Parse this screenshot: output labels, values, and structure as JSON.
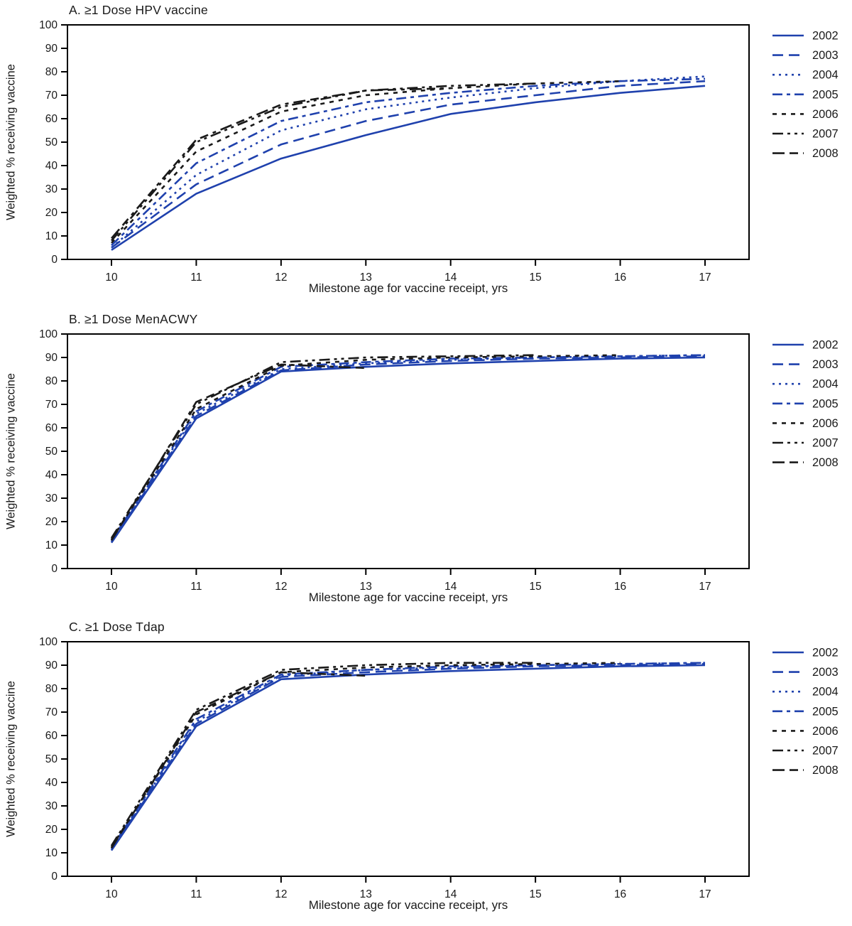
{
  "figure": {
    "background": "#ffffff",
    "text_color": "#1a1a1a",
    "axis_color": "#000000",
    "blue": "#1f41ad",
    "black": "#1a1a1a"
  },
  "chart_data": [
    {
      "type": "line",
      "panel": "A",
      "title": "A. ≥1 Dose HPV vaccine",
      "xlabel": "Milestone age for vaccine receipt, yrs",
      "ylabel": "Weighted % receiving vaccine",
      "x_ticks": [
        10,
        11,
        12,
        13,
        14,
        15,
        16,
        17
      ],
      "y_ticks": [
        0,
        10,
        20,
        30,
        40,
        50,
        60,
        70,
        80,
        90,
        100
      ],
      "ylim": [
        0,
        100
      ],
      "grid": false,
      "legend_position": "right",
      "series": [
        {
          "name": "2002",
          "color": "blue",
          "dash": "solid",
          "x": [
            10,
            11,
            12,
            13,
            14,
            15,
            16,
            17
          ],
          "y": [
            4,
            28,
            43,
            53,
            62,
            67,
            71,
            74
          ]
        },
        {
          "name": "2003",
          "color": "blue",
          "dash": "long-dash",
          "x": [
            10,
            11,
            12,
            13,
            14,
            15,
            16,
            17
          ],
          "y": [
            5,
            32,
            49,
            59,
            66,
            70,
            74,
            76
          ]
        },
        {
          "name": "2004",
          "color": "blue",
          "dash": "dot",
          "x": [
            10,
            11,
            12,
            13,
            14,
            15,
            16,
            17
          ],
          "y": [
            5,
            36,
            55,
            64,
            69,
            73,
            76,
            78
          ]
        },
        {
          "name": "2005",
          "color": "blue",
          "dash": "dash-dot",
          "x": [
            10,
            11,
            12,
            13,
            14,
            15,
            16,
            17
          ],
          "y": [
            6,
            41,
            59,
            67,
            71,
            74,
            76,
            77
          ]
        },
        {
          "name": "2006",
          "color": "black",
          "dash": "short-dash",
          "x": [
            10,
            11,
            12,
            13,
            14,
            15,
            16
          ],
          "y": [
            7,
            46,
            63,
            70,
            73,
            75,
            76
          ]
        },
        {
          "name": "2007",
          "color": "black",
          "dash": "dash-dot-dot",
          "x": [
            10,
            11,
            12,
            13,
            14,
            15
          ],
          "y": [
            8,
            50,
            65,
            72,
            74,
            75
          ]
        },
        {
          "name": "2008",
          "color": "black",
          "dash": "long-dash-dot",
          "x": [
            10,
            11,
            12,
            13,
            14
          ],
          "y": [
            9,
            51,
            66,
            72,
            73
          ]
        }
      ]
    },
    {
      "type": "line",
      "panel": "B",
      "title": "B. ≥1 Dose  MenACWY",
      "xlabel": "Milestone age for vaccine receipt, yrs",
      "ylabel": "Weighted % receiving vaccine",
      "x_ticks": [
        10,
        11,
        12,
        13,
        14,
        15,
        16,
        17
      ],
      "y_ticks": [
        0,
        10,
        20,
        30,
        40,
        50,
        60,
        70,
        80,
        90,
        100
      ],
      "ylim": [
        0,
        100
      ],
      "grid": false,
      "legend_position": "right",
      "series": [
        {
          "name": "2002",
          "color": "blue",
          "dash": "solid",
          "x": [
            10,
            11,
            12,
            13,
            14,
            15,
            16,
            17
          ],
          "y": [
            11,
            64,
            84,
            86,
            87.5,
            88.5,
            89.5,
            90
          ]
        },
        {
          "name": "2003",
          "color": "blue",
          "dash": "long-dash",
          "x": [
            10,
            11,
            12,
            13,
            14,
            15,
            16,
            17
          ],
          "y": [
            11.5,
            65,
            84.5,
            87,
            88.5,
            89.5,
            90,
            90.5
          ]
        },
        {
          "name": "2004",
          "color": "blue",
          "dash": "dot",
          "x": [
            10,
            11,
            12,
            13,
            14,
            15,
            16,
            17
          ],
          "y": [
            12,
            66,
            85,
            87.5,
            89,
            90,
            90.5,
            91
          ]
        },
        {
          "name": "2005",
          "color": "blue",
          "dash": "dash-dot",
          "x": [
            10,
            11,
            12,
            13,
            14,
            15,
            16,
            17
          ],
          "y": [
            12,
            67,
            86,
            88,
            89.5,
            90,
            90.5,
            91
          ]
        },
        {
          "name": "2006",
          "color": "black",
          "dash": "short-dash",
          "x": [
            10,
            11,
            12,
            13,
            14,
            15,
            16
          ],
          "y": [
            12.5,
            68,
            86.5,
            89,
            90,
            90.5,
            91
          ]
        },
        {
          "name": "2007",
          "color": "black",
          "dash": "dash-dot-dot",
          "x": [
            10,
            11,
            12,
            13,
            14,
            15
          ],
          "y": [
            13,
            70,
            88,
            90,
            90.5,
            91
          ]
        },
        {
          "name": "2008",
          "color": "black",
          "dash": "long-dash-dot",
          "x": [
            10,
            11,
            12,
            13
          ],
          "y": [
            12,
            71,
            87,
            85.5
          ]
        }
      ]
    },
    {
      "type": "line",
      "panel": "C",
      "title": "C. ≥1 Dose Tdap",
      "xlabel": "Milestone age for vaccine receipt, yrs",
      "ylabel": "Weighted % receiving vaccine",
      "x_ticks": [
        10,
        11,
        12,
        13,
        14,
        15,
        16,
        17
      ],
      "y_ticks": [
        0,
        10,
        20,
        30,
        40,
        50,
        60,
        70,
        80,
        90,
        100
      ],
      "ylim": [
        0,
        100
      ],
      "grid": false,
      "legend_position": "right",
      "series": [
        {
          "name": "2002",
          "color": "blue",
          "dash": "solid",
          "x": [
            10,
            11,
            12,
            13,
            14,
            15,
            16,
            17
          ],
          "y": [
            11,
            64,
            84,
            86,
            87.5,
            88.5,
            89.5,
            90
          ]
        },
        {
          "name": "2003",
          "color": "blue",
          "dash": "long-dash",
          "x": [
            10,
            11,
            12,
            13,
            14,
            15,
            16,
            17
          ],
          "y": [
            11.5,
            65,
            85,
            87,
            88.5,
            89.5,
            90,
            90.5
          ]
        },
        {
          "name": "2004",
          "color": "blue",
          "dash": "dot",
          "x": [
            10,
            11,
            12,
            13,
            14,
            15,
            16,
            17
          ],
          "y": [
            12,
            66,
            85.5,
            88,
            89,
            90,
            90.5,
            91
          ]
        },
        {
          "name": "2005",
          "color": "blue",
          "dash": "dash-dot",
          "x": [
            10,
            11,
            12,
            13,
            14,
            15,
            16,
            17
          ],
          "y": [
            12,
            67,
            86,
            88,
            89.5,
            90,
            90.5,
            91
          ]
        },
        {
          "name": "2006",
          "color": "black",
          "dash": "short-dash",
          "x": [
            10,
            11,
            12,
            13,
            14,
            15,
            16
          ],
          "y": [
            12.5,
            69,
            87,
            89,
            90,
            90.5,
            91
          ]
        },
        {
          "name": "2007",
          "color": "black",
          "dash": "dash-dot-dot",
          "x": [
            10,
            11,
            12,
            13,
            14,
            15
          ],
          "y": [
            13,
            71,
            88,
            90,
            91,
            91
          ]
        },
        {
          "name": "2008",
          "color": "black",
          "dash": "long-dash-dot",
          "x": [
            10,
            11,
            12,
            13
          ],
          "y": [
            12,
            70,
            87,
            85.5
          ]
        }
      ]
    }
  ]
}
